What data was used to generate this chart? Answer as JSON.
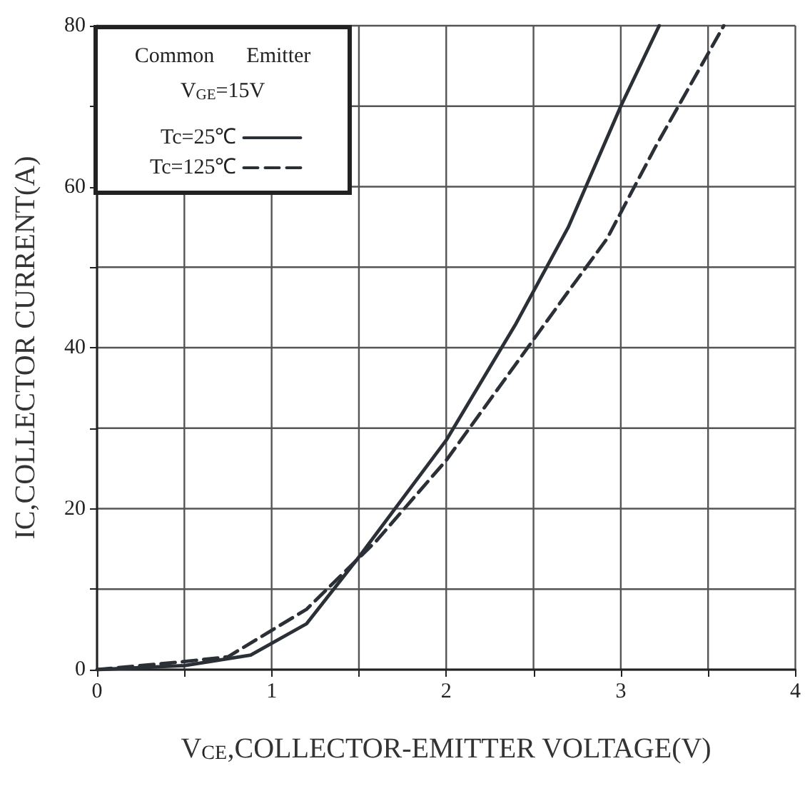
{
  "chart_data": {
    "type": "line",
    "xlabel": "V$_{CE}$,COLLECTOR-EMITTER VOLTAGE(V)",
    "ylabel": "IC,COLLECTOR CURRENT(A)",
    "legend_title": "Common      Emitter",
    "annotations": [
      "V$_{GE}$=15V"
    ],
    "series": [
      {
        "name": "Tc=25℃",
        "color": "#2b2f36",
        "line_style": "solid",
        "x": [
          0,
          0.5,
          0.88,
          1.2,
          1.5,
          2,
          2.4,
          2.7,
          3,
          3.22
        ],
        "values": [
          0,
          0.5,
          1.8,
          5.7,
          14,
          28.5,
          43,
          55,
          70,
          80
        ]
      },
      {
        "name": "Tc=125℃",
        "color": "#2b2f36",
        "line_style": "dashed",
        "x": [
          0,
          0.5,
          0.75,
          1.2,
          1.6,
          2,
          2.4,
          2.7,
          2.92,
          3.2,
          3.59
        ],
        "values": [
          0,
          1,
          1.6,
          7.5,
          16,
          26,
          38,
          47,
          53.5,
          65,
          80
        ]
      }
    ],
    "xlim": [
      0,
      4
    ],
    "ylim": [
      0,
      80
    ],
    "xticks": [
      0,
      {
        "value": 0.5,
        "label": null
      },
      1,
      {
        "value": 1.5,
        "label": null
      },
      2,
      {
        "value": 2.5,
        "label": null
      },
      3,
      {
        "value": 3.5,
        "label": null
      },
      4
    ],
    "yticks": [
      0,
      {
        "value": 10,
        "label": null
      },
      20,
      {
        "value": 30,
        "label": null
      },
      40,
      {
        "value": 50,
        "label": null
      },
      60,
      {
        "value": 70,
        "label": null
      },
      80
    ],
    "grid": true,
    "legend": "top left",
    "marker": "none"
  }
}
